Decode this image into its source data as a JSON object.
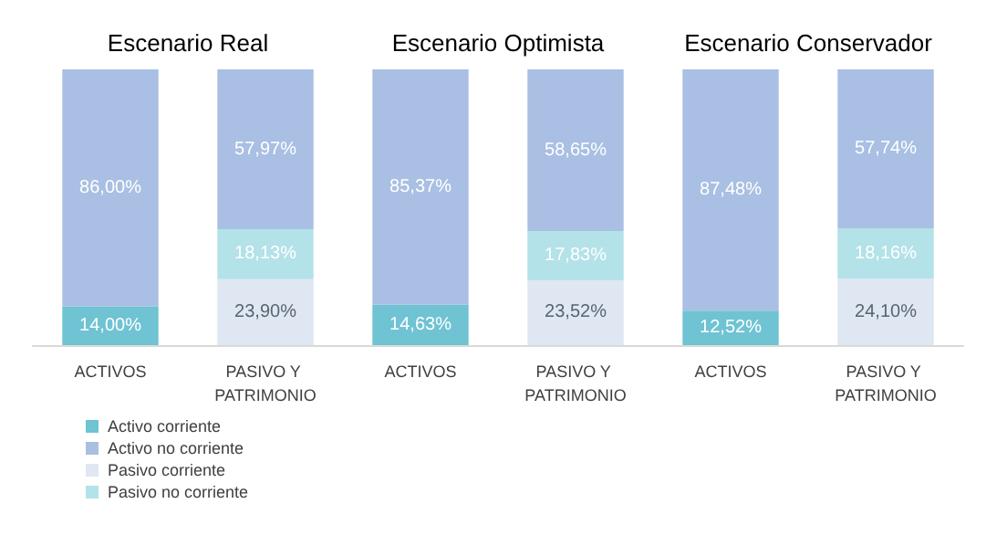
{
  "chart_data": {
    "type": "bar",
    "stacked": true,
    "legend": "bottom left",
    "grid": false,
    "categories": [
      "ACTIVOS",
      "PASIVO Y PATRIMONIO",
      "ACTIVOS",
      "PASIVO Y PATRIMONIO",
      "ACTIVOS",
      "PASIVO Y PATRIMONIO"
    ],
    "annotations": [
      "Escenario Real",
      "Escenario Optimista",
      "Escenario Conservador"
    ],
    "series": [
      {
        "name": "Activo corriente",
        "color": "#6fc3d3",
        "values": [
          14.0,
          null,
          14.63,
          null,
          12.52,
          null
        ],
        "value_labels": [
          "14,00%",
          null,
          "14,63%",
          null,
          "12,52%",
          null
        ]
      },
      {
        "name": "Activo no corriente",
        "color": "#a9bfe3",
        "values": [
          86.0,
          null,
          85.37,
          null,
          87.48,
          null
        ],
        "value_labels": [
          "86,00%",
          null,
          "85,37%",
          null,
          "87,48%",
          null
        ]
      },
      {
        "name": "Pasivo corriente",
        "color": "#dfe7f3",
        "values": [
          null,
          23.9,
          null,
          23.52,
          null,
          24.1
        ],
        "value_labels": [
          null,
          "23,90%",
          null,
          "23,52%",
          null,
          "24,10%"
        ]
      },
      {
        "name": "Pasivo no corriente",
        "color": "#b3e2e8",
        "values": [
          null,
          18.13,
          null,
          17.83,
          null,
          18.16
        ],
        "value_labels": [
          null,
          "18,13%",
          null,
          "17,83%",
          null,
          "18,16%"
        ]
      },
      {
        "color": "#a9bfe3",
        "values": [
          null,
          57.97,
          null,
          58.65,
          null,
          57.74
        ],
        "value_labels": [
          null,
          "57,97%",
          null,
          "58,65%",
          null,
          "57,74%"
        ]
      }
    ]
  }
}
